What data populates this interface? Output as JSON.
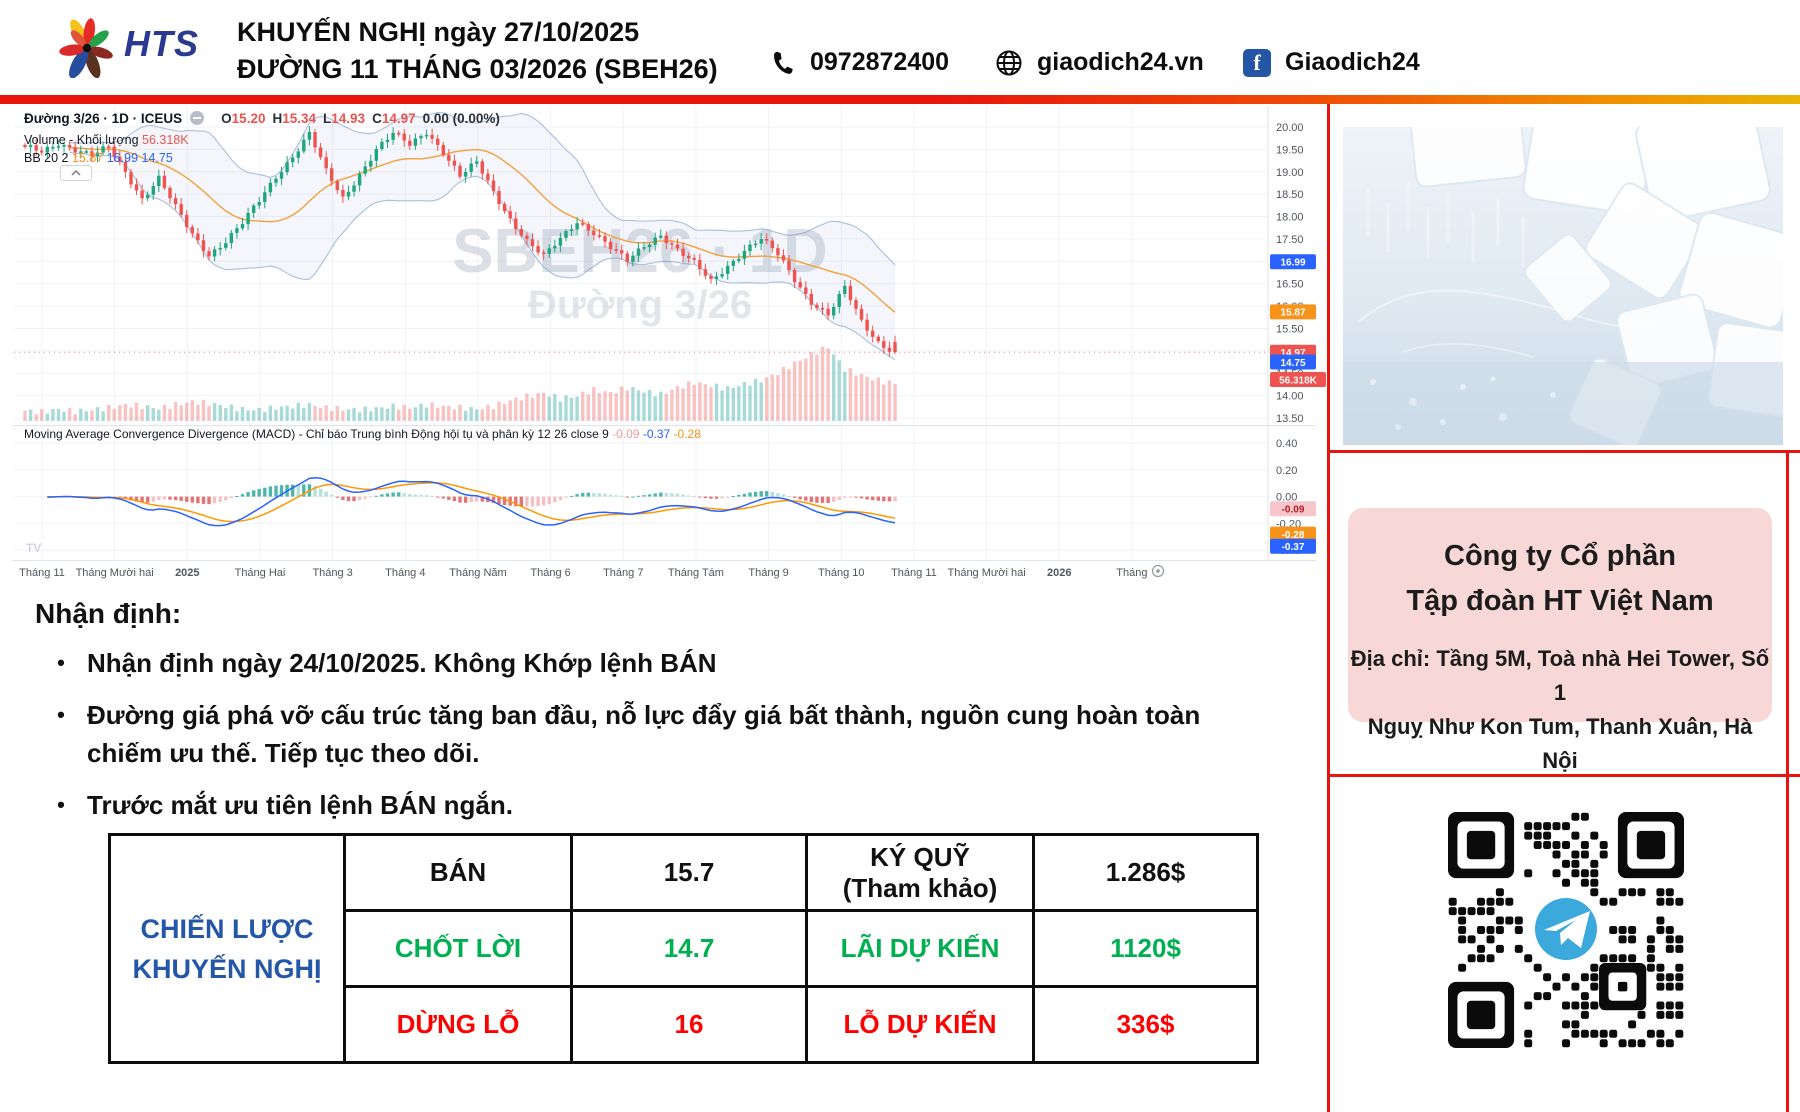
{
  "header": {
    "logo_text": "HTS",
    "title_line1": "KHUYẾN NGHỊ ngày 27/10/2025",
    "title_line2": "ĐƯỜNG 11 THÁNG 03/2026 (SBEH26)",
    "phone": "0972872400",
    "website": "giaodich24.vn",
    "facebook": "Giaodich24",
    "fb_glyph": "f"
  },
  "chart": {
    "legend": {
      "symbol": "Đường 3/26 · 1D · ICEUS",
      "ohlc": {
        "l0": "O",
        "v0": "15.20",
        "l1": "H",
        "v1": "15.34",
        "l2": "L",
        "v2": "14.93",
        "l3": "C",
        "v3": "14.97",
        "change": "0.00 (0.00%)"
      },
      "volume_label": "Volume - Khối lượng",
      "volume_value": "56.318K",
      "bb_label": "BB 20 2",
      "bb_basis": "15.87",
      "bb_upper": "16.99",
      "bb_lower": "14.75",
      "macd_label": "Moving Average Convergence Divergence (MACD) - Chỉ báo Trung bình Động hội tụ và phân kỳ 12 26 close 9",
      "macd_hist": "-0.09",
      "macd_line": "-0.37",
      "macd_signal": "-0.28"
    },
    "watermark_line1": "SBEH26 · 1D",
    "watermark_line2": "Đường 3/26",
    "price_ticks": [
      20.0,
      19.5,
      19.0,
      18.5,
      18.0,
      17.5,
      17.0,
      16.5,
      16.0,
      15.5,
      15.0,
      14.5,
      14.0,
      13.5
    ],
    "macd_ticks": [
      0.4,
      0.2,
      0.0,
      -0.2,
      -0.4
    ],
    "time_ticks": [
      {
        "label": "Tháng 11",
        "bold": false
      },
      {
        "label": "Tháng Mười hai",
        "bold": false
      },
      {
        "label": "2025",
        "bold": true
      },
      {
        "label": "Tháng Hai",
        "bold": false
      },
      {
        "label": "Tháng 3",
        "bold": false
      },
      {
        "label": "Tháng 4",
        "bold": false
      },
      {
        "label": "Tháng Năm",
        "bold": false
      },
      {
        "label": "Tháng 6",
        "bold": false
      },
      {
        "label": "Tháng 7",
        "bold": false
      },
      {
        "label": "Tháng Tám",
        "bold": false
      },
      {
        "label": "Tháng 9",
        "bold": false
      },
      {
        "label": "Tháng 10",
        "bold": false
      },
      {
        "label": "Tháng 11",
        "bold": false
      },
      {
        "label": "Tháng Mười hai",
        "bold": false
      },
      {
        "label": "2026",
        "bold": true
      },
      {
        "label": "Tháng",
        "bold": false
      }
    ],
    "price_badges": [
      {
        "text": "16.99",
        "color": "#2962ff",
        "text_color": "#ffffff",
        "price": 16.99
      },
      {
        "text": "15.87",
        "color": "#f7931a",
        "text_color": "#ffffff",
        "price": 15.87
      },
      {
        "text": "14.97",
        "color": "#ef5350",
        "text_color": "#ffffff",
        "price": 14.97
      },
      {
        "text": "14.75",
        "color": "#2962ff",
        "text_color": "#ffffff",
        "price": 14.75
      },
      {
        "text": "56.318K",
        "color": "#ef5350",
        "text_color": "#ffffff",
        "price": 14.36
      }
    ],
    "macd_badges": [
      {
        "text": "-0.09",
        "color": "#f6c6cc",
        "text_color": "#b71c1c",
        "value": -0.09
      },
      {
        "text": "-0.28",
        "color": "#f7931a",
        "text_color": "#ffffff",
        "value": -0.28
      },
      {
        "text": "-0.37",
        "color": "#2962ff",
        "text_color": "#ffffff",
        "value": -0.37
      }
    ],
    "chart_data": {
      "type": "candlestick",
      "symbol": "SBEH26 — Đường 3/26 (Sugar No.11 Mar 2026), 1D, ICEUS",
      "price_axis_range": [
        13.5,
        20.0
      ],
      "macd_axis_range": [
        -0.4,
        0.4
      ],
      "time_span": [
        "Tháng 11 2024",
        "Tháng 10 2025"
      ],
      "weekly_closes": [
        19.55,
        19.45,
        19.65,
        19.5,
        19.35,
        19.55,
        19.0,
        18.4,
        18.85,
        18.2,
        17.6,
        17.15,
        17.45,
        17.85,
        18.35,
        18.9,
        19.35,
        19.85,
        19.0,
        18.4,
        18.95,
        19.5,
        19.85,
        19.6,
        19.9,
        19.45,
        18.9,
        19.2,
        18.55,
        17.95,
        17.45,
        17.1,
        17.5,
        17.9,
        17.65,
        17.3,
        17.0,
        17.35,
        17.6,
        17.25,
        16.95,
        16.55,
        16.9,
        17.25,
        17.5,
        17.15,
        16.6,
        16.1,
        15.8,
        16.4,
        15.65,
        15.2,
        14.97
      ],
      "weekly_volume_rel": [
        0.14,
        0.12,
        0.16,
        0.13,
        0.15,
        0.18,
        0.22,
        0.2,
        0.17,
        0.22,
        0.26,
        0.24,
        0.2,
        0.16,
        0.15,
        0.18,
        0.2,
        0.22,
        0.18,
        0.16,
        0.15,
        0.17,
        0.2,
        0.18,
        0.22,
        0.2,
        0.18,
        0.16,
        0.2,
        0.28,
        0.33,
        0.38,
        0.3,
        0.34,
        0.42,
        0.38,
        0.45,
        0.4,
        0.36,
        0.45,
        0.52,
        0.48,
        0.44,
        0.5,
        0.55,
        0.65,
        0.78,
        0.9,
        1.0,
        0.7,
        0.62,
        0.55,
        0.5
      ],
      "last": {
        "open": 15.2,
        "high": 15.34,
        "low": 14.93,
        "close": 14.97,
        "change": "0.00 (0.00%)",
        "volume": "56.318K"
      },
      "bollinger": {
        "period": 20,
        "stdev": 2,
        "basis": 15.87,
        "upper": 16.99,
        "lower": 14.75
      },
      "macd": {
        "fast": 12,
        "slow": 26,
        "signal_period": 9,
        "macd": -0.37,
        "signal": -0.28,
        "histogram": -0.09
      }
    }
  },
  "analysis": {
    "heading": "Nhận định:",
    "bullets": [
      "Nhận định ngày 24/10/2025. Không Khớp lệnh BÁN",
      "Đường giá phá vỡ cấu trúc tăng ban đầu, nỗ lực đẩy giá bất thành, nguồn cung hoàn toàn chiếm ưu thế. Tiếp tục theo dõi.",
      "Trước mắt ưu tiên lệnh BÁN ngắn."
    ]
  },
  "strategy_table": {
    "label_line1": "CHIẾN LƯỢC",
    "label_line2": "KHUYẾN NGHỊ",
    "rows": [
      {
        "name": "BÁN",
        "value": "15.7",
        "name2a": "KÝ QUỸ",
        "name2b": "(Tham khảo)",
        "value2": "1.286$"
      },
      {
        "name": "CHỐT LỜI",
        "value": "14.7",
        "name2a": "LÃI DỰ KIẾN",
        "name2b": "",
        "value2": "1120$"
      },
      {
        "name": "DỪNG LỖ",
        "value": "16",
        "name2a": "LỖ DỰ KIẾN",
        "name2b": "",
        "value2": "336$"
      }
    ]
  },
  "company": {
    "name_line1": "Công ty Cổ phần",
    "name_line2": "Tập đoàn HT Việt Nam",
    "address_line1": "Địa chỉ: Tầng 5M, Toà nhà Hei Tower, Số 1",
    "address_line2": "Nguỵ Như Kon Tum, Thanh Xuân, Hà Nội"
  }
}
